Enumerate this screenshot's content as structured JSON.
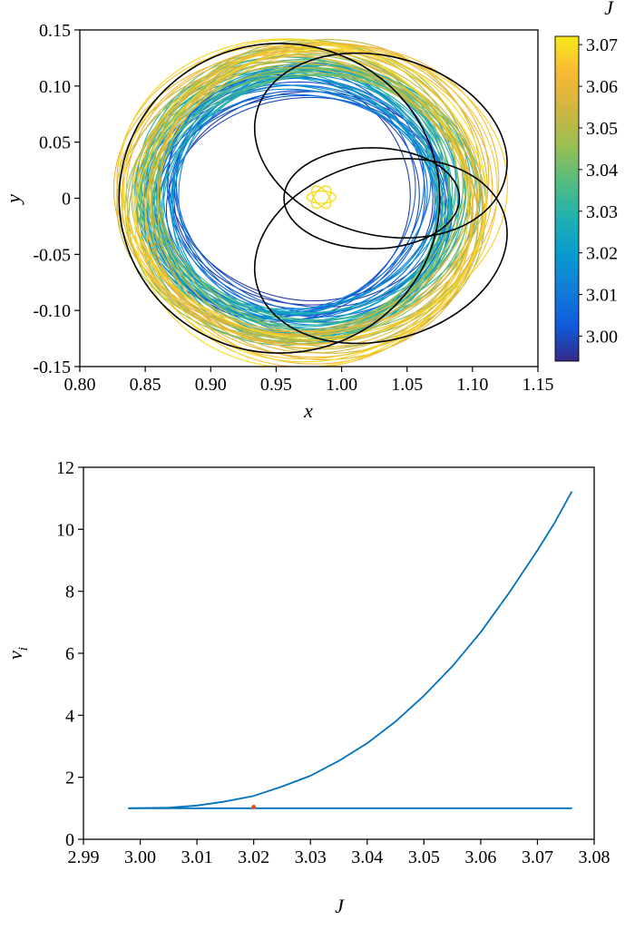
{
  "figure": {
    "background": "#ffffff",
    "accent_blue": "#0072BD",
    "marker_orange": "#D95319"
  },
  "chart_data": [
    {
      "type": "line",
      "description": "Family of planar orbits in the rotating frame, colored by Jacobi constant J (parula colormap), with selected orbits highlighted in black",
      "xlabel": "x",
      "ylabel": "y",
      "xlim": [
        0.8,
        1.15
      ],
      "ylim": [
        -0.15,
        0.15
      ],
      "xtick_values": [
        0.8,
        0.85,
        0.9,
        0.95,
        1.0,
        1.05,
        1.1,
        1.15
      ],
      "xtick_labels": [
        "0.80",
        "0.85",
        "0.90",
        "0.95",
        "1.00",
        "1.05",
        "1.10",
        "1.15"
      ],
      "ytick_values": [
        -0.15,
        -0.1,
        -0.05,
        0,
        0.05,
        0.1,
        0.15
      ],
      "ytick_labels": [
        "-0.15",
        "-0.10",
        "-0.05",
        "0",
        "0.05",
        "0.10",
        "0.15"
      ],
      "grid": false,
      "colorbar": {
        "label": "J",
        "min": 2.994,
        "max": 3.072,
        "tick_values": [
          3.0,
          3.01,
          3.02,
          3.03,
          3.04,
          3.05,
          3.06,
          3.07
        ],
        "tick_labels": [
          "3.00",
          "3.01",
          "3.02",
          "3.03",
          "3.04",
          "3.05",
          "3.06",
          "3.07"
        ],
        "colormap": "parula",
        "stops": [
          [
            0.0,
            "#352a87"
          ],
          [
            0.111,
            "#0f5cdd"
          ],
          [
            0.222,
            "#127dd8"
          ],
          [
            0.333,
            "#079ccf"
          ],
          [
            0.444,
            "#21b1ae"
          ],
          [
            0.556,
            "#55bd7e"
          ],
          [
            0.667,
            "#9dbe51"
          ],
          [
            0.778,
            "#d1b541"
          ],
          [
            0.889,
            "#f9b935"
          ],
          [
            1.0,
            "#f5e91a"
          ]
        ]
      },
      "orbit_family": {
        "count": 80,
        "J_min": 2.996,
        "J_max": 3.07,
        "center_x": 0.966,
        "center_drift": 0.01,
        "wobble_radius": 0.011,
        "wobble_y_scale": 0.82,
        "wobble_step_deg": 76.345,
        "r_min": 0.1,
        "r_max": 0.138,
        "aspect_a": 1.05,
        "aspect_b": 0.95,
        "rotation_step_deg": 137.508,
        "stroke_width": 1.1
      },
      "center_blob": {
        "cx": 0.9845,
        "cy": 0.001,
        "a": 0.011,
        "b": 0.0055,
        "rotations_deg": [
          0,
          60,
          120
        ],
        "color_t": 0.97,
        "stroke_width": 1.4
      },
      "highlight_orbits": {
        "color": "#000000",
        "stroke_width": 1.6,
        "ellipses": [
          [
            0.9525,
            0.0,
            0.1225,
            0.138,
            0
          ],
          [
            1.03,
            0.047,
            0.1,
            0.078,
            -25
          ],
          [
            1.03,
            -0.047,
            0.1,
            0.078,
            25
          ],
          [
            1.023,
            0.0,
            0.067,
            0.045,
            0
          ]
        ]
      }
    },
    {
      "type": "line",
      "description": "Stability index v_i versus Jacobi constant J: one branch grows steeply, the other stays at 1",
      "xlabel": "J",
      "ylabel": "v_i",
      "ylabel_main": "v",
      "ylabel_sub": "i",
      "xlim": [
        2.99,
        3.08
      ],
      "ylim": [
        0,
        12
      ],
      "xtick_values": [
        2.99,
        3.0,
        3.01,
        3.02,
        3.03,
        3.04,
        3.05,
        3.06,
        3.07,
        3.08
      ],
      "xtick_labels": [
        "2.99",
        "3.00",
        "3.01",
        "3.02",
        "3.03",
        "3.04",
        "3.05",
        "3.06",
        "3.07",
        "3.08"
      ],
      "ytick_values": [
        0,
        2,
        4,
        6,
        8,
        10,
        12
      ],
      "ytick_labels": [
        "0",
        "2",
        "4",
        "6",
        "8",
        "10",
        "12"
      ],
      "grid": false,
      "series": [
        {
          "name": "stability-index-rising",
          "color": "#0072BD",
          "width": 1.8,
          "points": [
            [
              2.998,
              1.0
            ],
            [
              3.005,
              1.02
            ],
            [
              3.01,
              1.09
            ],
            [
              3.015,
              1.22
            ],
            [
              3.02,
              1.4
            ],
            [
              3.025,
              1.7
            ],
            [
              3.03,
              2.05
            ],
            [
              3.035,
              2.53
            ],
            [
              3.04,
              3.1
            ],
            [
              3.045,
              3.8
            ],
            [
              3.05,
              4.63
            ],
            [
              3.055,
              5.58
            ],
            [
              3.06,
              6.68
            ],
            [
              3.065,
              7.95
            ],
            [
              3.07,
              9.32
            ],
            [
              3.073,
              10.2
            ],
            [
              3.076,
              11.2
            ]
          ]
        },
        {
          "name": "stability-index-unit",
          "color": "#0072BD",
          "width": 1.8,
          "points": [
            [
              2.998,
              1.0
            ],
            [
              3.076,
              1.0
            ]
          ]
        }
      ],
      "marker": {
        "x": 3.02,
        "y": 1.04,
        "color": "#D95319",
        "r": 2.5
      }
    }
  ]
}
